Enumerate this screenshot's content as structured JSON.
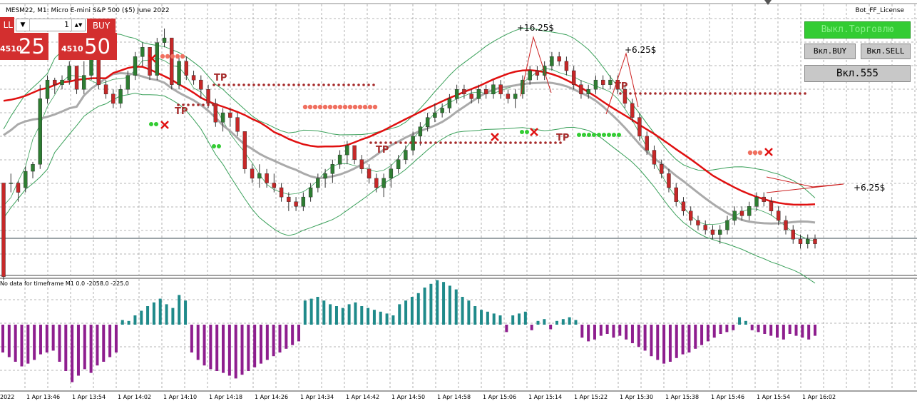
{
  "chart_title": "MESM22, M1:  Micro E-mini S&P 500 ($5) June 2022",
  "bot_name": "Bot_FF_License",
  "trade_panel": {
    "sell_label": "LL",
    "lot_value": "1",
    "buy_label": "BUY",
    "bid_small": "4510",
    "bid_big": "25",
    "ask_small": "4510",
    "ask_big": "50",
    "dropdown_glyph": "▼",
    "spin_glyph": "▲▼"
  },
  "buttons": {
    "trading_off": "Выкл.Торговлю",
    "enable_buy": "Вкл.BUY",
    "enable_sell": "Вкл.SELL",
    "enable_555": "Вкл.555"
  },
  "profit_labels": [
    "+16.25$",
    "+6.25$",
    "+6.25$"
  ],
  "tp_labels": [
    "TP",
    "TP",
    "TP",
    "TP",
    "TP"
  ],
  "oscillator_label": "No data for timeframe M1 0.0 -2058.0 -225.0",
  "time_axis": [
    "2022",
    "1 Apr 13:46",
    "1 Apr 13:54",
    "1 Apr 14:02",
    "1 Apr 14:10",
    "1 Apr 14:18",
    "1 Apr 14:26",
    "1 Apr 14:34",
    "1 Apr 14:42",
    "1 Apr 14:50",
    "1 Apr 14:58",
    "1 Apr 15:06",
    "1 Apr 15:14",
    "1 Apr 15:22",
    "1 Apr 15:30",
    "1 Apr 15:38",
    "1 Apr 15:46",
    "1 Apr 15:54",
    "1 Apr 16:02"
  ],
  "colors": {
    "bull": "#2e7d32",
    "bear": "#c62828",
    "ma": "#e01010",
    "band": "#3aa05a",
    "osc_pos": "#1f8a8a",
    "osc_neg": "#8e1e8e",
    "grid": "#9e9e9e",
    "tp_dots": "#a62b2b",
    "salmon": "#f07060",
    "green_dot": "#33cc33"
  },
  "chart_data": {
    "type": "candlestick",
    "price_candles": [
      [
        42,
        2,
        2,
        0.5
      ],
      [
        42,
        42,
        46,
        38
      ],
      [
        42,
        38,
        43,
        34
      ],
      [
        40,
        47,
        49,
        38
      ],
      [
        47,
        50,
        51,
        44
      ],
      [
        50,
        78,
        84,
        48
      ],
      [
        78,
        86,
        88,
        76
      ],
      [
        86,
        84,
        87,
        80
      ],
      [
        84,
        86,
        88,
        82
      ],
      [
        86,
        92,
        94,
        84
      ],
      [
        92,
        82,
        92,
        80
      ],
      [
        82,
        88,
        94,
        80
      ],
      [
        88,
        98,
        104,
        86
      ],
      [
        98,
        84,
        98,
        82
      ],
      [
        84,
        80,
        86,
        78
      ],
      [
        80,
        76,
        82,
        74
      ],
      [
        76,
        82,
        84,
        74
      ],
      [
        82,
        88,
        90,
        80
      ],
      [
        88,
        96,
        98,
        86
      ],
      [
        96,
        100,
        102,
        92
      ],
      [
        100,
        88,
        100,
        86
      ],
      [
        88,
        102,
        104,
        86
      ],
      [
        102,
        104,
        108,
        100
      ],
      [
        104,
        84,
        104,
        82
      ],
      [
        84,
        94,
        96,
        82
      ],
      [
        94,
        88,
        96,
        86
      ],
      [
        88,
        86,
        90,
        84
      ],
      [
        86,
        82,
        88,
        78
      ],
      [
        82,
        76,
        84,
        74
      ],
      [
        76,
        68,
        78,
        66
      ],
      [
        68,
        72,
        74,
        64
      ],
      [
        72,
        70,
        74,
        66
      ],
      [
        70,
        64,
        72,
        62
      ],
      [
        64,
        48,
        64,
        46
      ],
      [
        48,
        44,
        50,
        42
      ],
      [
        44,
        46,
        50,
        40
      ],
      [
        46,
        42,
        48,
        40
      ],
      [
        42,
        40,
        46,
        38
      ],
      [
        40,
        36,
        42,
        34
      ],
      [
        36,
        34,
        38,
        30
      ],
      [
        34,
        32,
        36,
        30
      ],
      [
        32,
        36,
        38,
        30
      ],
      [
        36,
        40,
        42,
        34
      ],
      [
        40,
        44,
        46,
        38
      ],
      [
        44,
        46,
        48,
        40
      ],
      [
        46,
        50,
        52,
        42
      ],
      [
        50,
        54,
        56,
        48
      ],
      [
        54,
        58,
        60,
        50
      ],
      [
        58,
        52,
        58,
        50
      ],
      [
        52,
        48,
        54,
        46
      ],
      [
        48,
        44,
        50,
        42
      ],
      [
        44,
        40,
        46,
        38
      ],
      [
        40,
        44,
        46,
        36
      ],
      [
        44,
        48,
        50,
        40
      ],
      [
        48,
        52,
        54,
        46
      ],
      [
        52,
        56,
        58,
        50
      ],
      [
        56,
        62,
        64,
        54
      ],
      [
        62,
        66,
        68,
        58
      ],
      [
        66,
        70,
        72,
        64
      ],
      [
        70,
        72,
        76,
        68
      ],
      [
        72,
        74,
        76,
        70
      ],
      [
        74,
        78,
        80,
        72
      ],
      [
        78,
        82,
        84,
        76
      ],
      [
        82,
        80,
        84,
        78
      ],
      [
        80,
        78,
        82,
        76
      ],
      [
        78,
        82,
        84,
        76
      ],
      [
        82,
        80,
        84,
        78
      ],
      [
        80,
        84,
        86,
        78
      ],
      [
        84,
        80,
        86,
        78
      ],
      [
        80,
        78,
        82,
        76
      ],
      [
        78,
        80,
        82,
        74
      ],
      [
        80,
        86,
        88,
        78
      ],
      [
        86,
        90,
        92,
        84
      ],
      [
        90,
        88,
        92,
        86
      ],
      [
        88,
        92,
        94,
        86
      ],
      [
        92,
        96,
        98,
        90
      ],
      [
        96,
        94,
        98,
        92
      ],
      [
        94,
        90,
        96,
        88
      ],
      [
        90,
        84,
        92,
        82
      ],
      [
        84,
        80,
        86,
        78
      ],
      [
        80,
        82,
        84,
        78
      ],
      [
        82,
        86,
        88,
        80
      ],
      [
        86,
        84,
        88,
        82
      ],
      [
        84,
        86,
        88,
        82
      ],
      [
        86,
        82,
        88,
        80
      ],
      [
        82,
        76,
        84,
        74
      ],
      [
        76,
        70,
        78,
        68
      ],
      [
        70,
        62,
        72,
        60
      ],
      [
        62,
        56,
        64,
        54
      ],
      [
        56,
        50,
        58,
        48
      ],
      [
        50,
        46,
        52,
        44
      ],
      [
        46,
        40,
        48,
        38
      ],
      [
        40,
        34,
        42,
        32
      ],
      [
        34,
        30,
        36,
        28
      ],
      [
        30,
        26,
        32,
        24
      ],
      [
        26,
        24,
        28,
        22
      ],
      [
        24,
        22,
        26,
        20
      ],
      [
        22,
        20,
        24,
        18
      ],
      [
        20,
        22,
        24,
        16
      ],
      [
        22,
        26,
        28,
        20
      ],
      [
        26,
        30,
        32,
        24
      ],
      [
        30,
        28,
        32,
        26
      ],
      [
        28,
        32,
        34,
        26
      ],
      [
        32,
        36,
        38,
        30
      ],
      [
        36,
        34,
        38,
        32
      ],
      [
        34,
        30,
        36,
        28
      ],
      [
        30,
        26,
        32,
        24
      ],
      [
        26,
        22,
        28,
        20
      ],
      [
        22,
        18,
        24,
        16
      ],
      [
        18,
        16,
        20,
        14
      ],
      [
        16,
        18,
        20,
        14
      ],
      [
        18,
        16,
        20,
        14
      ]
    ],
    "oscillator": [
      -30,
      -35,
      -40,
      -45,
      -42,
      -38,
      -32,
      -30,
      -28,
      -40,
      -50,
      -62,
      -55,
      -48,
      -52,
      -44,
      -40,
      -35,
      -30,
      5,
      4,
      10,
      15,
      20,
      24,
      28,
      22,
      18,
      32,
      26,
      -30,
      -38,
      -44,
      -48,
      -50,
      -52,
      -55,
      -58,
      -54,
      -50,
      -46,
      -42,
      -38,
      -34,
      -30,
      -26,
      -22,
      -18,
      26,
      28,
      30,
      26,
      22,
      20,
      18,
      22,
      24,
      20,
      18,
      16,
      14,
      12,
      10,
      22,
      26,
      30,
      34,
      40,
      44,
      48,
      46,
      42,
      38,
      30,
      26,
      20,
      16,
      14,
      12,
      10,
      -8,
      10,
      12,
      14,
      -6,
      4,
      6,
      -5,
      4,
      6,
      8,
      5,
      -14,
      -18,
      -16,
      -12,
      -10,
      -14,
      -12,
      -16,
      -20,
      -24,
      -28,
      -34,
      -38,
      -42,
      -40,
      -36,
      -32,
      -30,
      -26,
      -22,
      -18,
      -14,
      -10,
      -8,
      -6,
      8,
      4,
      -6,
      -8,
      -10,
      -12,
      -14,
      -16,
      -10,
      -12,
      -14,
      -16,
      -12
    ],
    "xlabel": "",
    "ylabel": ""
  }
}
